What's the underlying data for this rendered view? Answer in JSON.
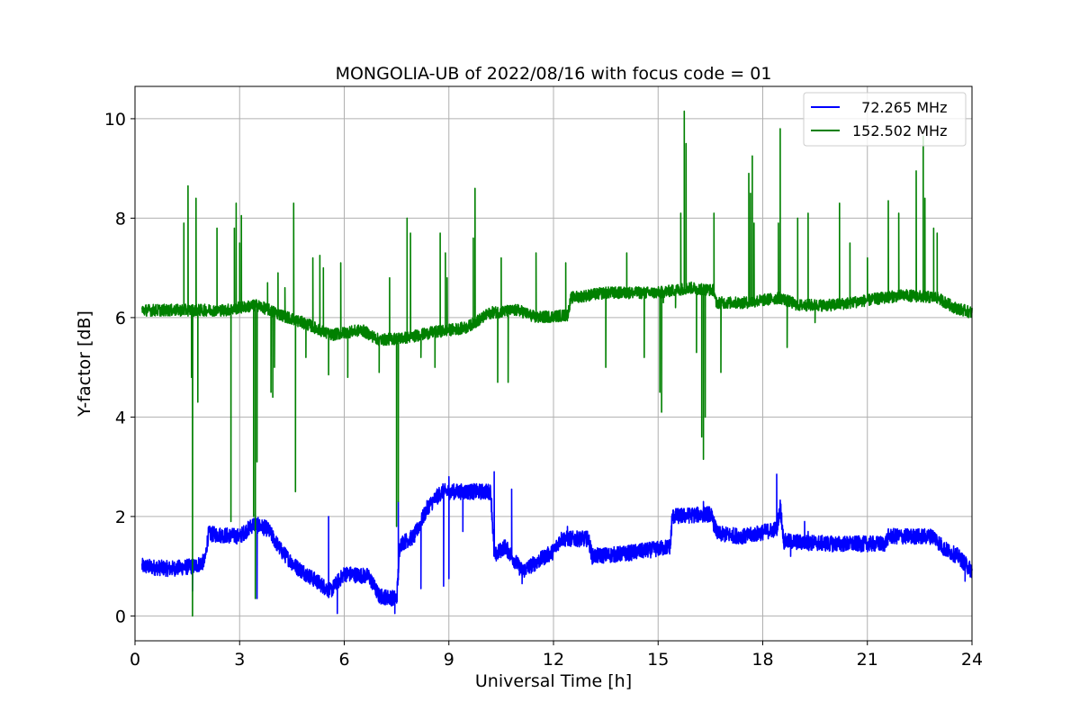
{
  "chart_data": {
    "type": "line",
    "title": "MONGOLIA-UB of 2022/08/16 with focus code = 01",
    "xlabel": "Universal Time [h]",
    "ylabel": "Y-factor [dB]",
    "xlim": [
      0,
      24
    ],
    "ylim": [
      -0.5,
      10.65
    ],
    "xticks": [
      0,
      3,
      6,
      9,
      12,
      15,
      18,
      21,
      24
    ],
    "xtick_labels": [
      "0",
      "3",
      "6",
      "9",
      "12",
      "15",
      "18",
      "21",
      "24"
    ],
    "yticks": [
      0,
      2,
      4,
      6,
      8,
      10
    ],
    "ytick_labels": [
      "0",
      "2",
      "4",
      "6",
      "8",
      "10"
    ],
    "grid": true,
    "legend_position": "top-right",
    "series": [
      {
        "name": "  72.265 MHz",
        "color": "#0000ff",
        "base": [
          [
            0.2,
            1.0
          ],
          [
            1.0,
            0.95
          ],
          [
            1.7,
            1.0
          ],
          [
            2.0,
            1.1
          ],
          [
            2.1,
            1.65
          ],
          [
            3.0,
            1.6
          ],
          [
            3.4,
            1.85
          ],
          [
            3.8,
            1.75
          ],
          [
            4.2,
            1.3
          ],
          [
            4.6,
            1.0
          ],
          [
            5.2,
            0.7
          ],
          [
            5.6,
            0.5
          ],
          [
            6.0,
            0.85
          ],
          [
            6.7,
            0.8
          ],
          [
            7.0,
            0.4
          ],
          [
            7.5,
            0.35
          ],
          [
            7.6,
            1.45
          ],
          [
            8.0,
            1.6
          ],
          [
            8.4,
            2.2
          ],
          [
            8.8,
            2.5
          ],
          [
            9.3,
            2.5
          ],
          [
            10.2,
            2.5
          ],
          [
            10.3,
            1.2
          ],
          [
            10.6,
            1.4
          ],
          [
            11.1,
            0.9
          ],
          [
            12.0,
            1.3
          ],
          [
            12.2,
            1.55
          ],
          [
            13.0,
            1.55
          ],
          [
            13.1,
            1.2
          ],
          [
            14.0,
            1.25
          ],
          [
            15.0,
            1.35
          ],
          [
            15.35,
            1.4
          ],
          [
            15.4,
            2.0
          ],
          [
            16.5,
            2.05
          ],
          [
            16.7,
            1.65
          ],
          [
            17.5,
            1.6
          ],
          [
            18.4,
            1.75
          ],
          [
            18.5,
            2.2
          ],
          [
            18.6,
            1.5
          ],
          [
            20.0,
            1.45
          ],
          [
            21.0,
            1.45
          ],
          [
            21.5,
            1.45
          ],
          [
            21.6,
            1.6
          ],
          [
            22.0,
            1.6
          ],
          [
            22.9,
            1.6
          ],
          [
            23.2,
            1.35
          ],
          [
            23.6,
            1.2
          ],
          [
            24.0,
            0.9
          ]
        ],
        "spikes": [
          [
            1.65,
            0.5
          ],
          [
            3.5,
            0.35
          ],
          [
            3.45,
            2.05
          ],
          [
            5.55,
            2.0
          ],
          [
            5.8,
            0.05
          ],
          [
            7.45,
            0.05
          ],
          [
            7.55,
            2.3
          ],
          [
            8.2,
            0.55
          ],
          [
            8.85,
            0.6
          ],
          [
            9.0,
            0.75
          ],
          [
            9.0,
            2.8
          ],
          [
            9.4,
            1.7
          ],
          [
            10.3,
            2.9
          ],
          [
            10.8,
            2.55
          ],
          [
            11.1,
            0.65
          ],
          [
            12.4,
            1.8
          ],
          [
            16.3,
            2.3
          ],
          [
            18.4,
            2.85
          ],
          [
            18.8,
            1.2
          ],
          [
            19.2,
            1.9
          ],
          [
            19.3,
            1.7
          ],
          [
            23.8,
            0.7
          ]
        ]
      },
      {
        "name": "152.502 MHz",
        "color": "#008000",
        "base": [
          [
            0.2,
            6.15
          ],
          [
            1.0,
            6.15
          ],
          [
            2.0,
            6.15
          ],
          [
            2.6,
            6.15
          ],
          [
            3.0,
            6.2
          ],
          [
            3.5,
            6.25
          ],
          [
            4.2,
            6.05
          ],
          [
            5.0,
            5.85
          ],
          [
            5.6,
            5.65
          ],
          [
            6.5,
            5.75
          ],
          [
            7.0,
            5.55
          ],
          [
            7.8,
            5.6
          ],
          [
            8.5,
            5.7
          ],
          [
            9.5,
            5.8
          ],
          [
            10.2,
            6.1
          ],
          [
            11.0,
            6.15
          ],
          [
            11.5,
            6.0
          ],
          [
            12.4,
            6.05
          ],
          [
            12.5,
            6.4
          ],
          [
            13.5,
            6.5
          ],
          [
            15.0,
            6.5
          ],
          [
            15.9,
            6.6
          ],
          [
            16.6,
            6.55
          ],
          [
            16.65,
            6.3
          ],
          [
            17.5,
            6.3
          ],
          [
            18.5,
            6.4
          ],
          [
            19.0,
            6.25
          ],
          [
            20.0,
            6.25
          ],
          [
            21.0,
            6.35
          ],
          [
            22.0,
            6.45
          ],
          [
            23.0,
            6.4
          ],
          [
            23.5,
            6.2
          ],
          [
            24.0,
            6.1
          ]
        ],
        "spikes": [
          [
            1.4,
            7.9
          ],
          [
            1.52,
            8.65
          ],
          [
            1.62,
            4.8
          ],
          [
            1.65,
            0.0
          ],
          [
            1.75,
            8.4
          ],
          [
            1.8,
            4.3
          ],
          [
            2.35,
            7.8
          ],
          [
            2.75,
            1.9
          ],
          [
            2.85,
            7.8
          ],
          [
            2.9,
            8.3
          ],
          [
            3.0,
            7.5
          ],
          [
            3.05,
            8.05
          ],
          [
            3.4,
            2.0
          ],
          [
            3.45,
            0.35
          ],
          [
            3.5,
            3.1
          ],
          [
            3.8,
            6.7
          ],
          [
            3.9,
            4.5
          ],
          [
            3.95,
            4.4
          ],
          [
            4.0,
            5.0
          ],
          [
            4.1,
            6.9
          ],
          [
            4.3,
            6.6
          ],
          [
            4.55,
            8.3
          ],
          [
            4.6,
            2.5
          ],
          [
            4.9,
            5.2
          ],
          [
            5.1,
            7.2
          ],
          [
            5.3,
            7.25
          ],
          [
            5.4,
            7.0
          ],
          [
            5.55,
            4.85
          ],
          [
            5.9,
            7.1
          ],
          [
            6.1,
            4.8
          ],
          [
            7.0,
            4.9
          ],
          [
            7.3,
            6.8
          ],
          [
            7.5,
            1.8
          ],
          [
            7.55,
            2.3
          ],
          [
            7.8,
            8.0
          ],
          [
            7.9,
            7.7
          ],
          [
            8.2,
            5.2
          ],
          [
            8.6,
            5.0
          ],
          [
            8.75,
            7.7
          ],
          [
            8.9,
            7.3
          ],
          [
            8.95,
            6.8
          ],
          [
            9.7,
            7.6
          ],
          [
            9.75,
            8.6
          ],
          [
            10.4,
            4.7
          ],
          [
            10.5,
            7.2
          ],
          [
            10.7,
            4.7
          ],
          [
            11.5,
            7.3
          ],
          [
            12.35,
            7.1
          ],
          [
            13.5,
            5.0
          ],
          [
            14.1,
            7.3
          ],
          [
            14.6,
            5.2
          ],
          [
            15.05,
            4.5
          ],
          [
            15.1,
            4.1
          ],
          [
            15.15,
            6.3
          ],
          [
            15.5,
            6.2
          ],
          [
            15.65,
            8.1
          ],
          [
            15.75,
            10.15
          ],
          [
            15.8,
            9.5
          ],
          [
            16.1,
            5.3
          ],
          [
            16.25,
            3.6
          ],
          [
            16.3,
            3.15
          ],
          [
            16.35,
            4.0
          ],
          [
            16.6,
            8.1
          ],
          [
            16.8,
            4.9
          ],
          [
            17.6,
            8.9
          ],
          [
            17.65,
            8.5
          ],
          [
            17.7,
            9.25
          ],
          [
            17.75,
            7.9
          ],
          [
            18.45,
            7.9
          ],
          [
            18.5,
            9.8
          ],
          [
            18.7,
            5.4
          ],
          [
            19.0,
            8.0
          ],
          [
            19.3,
            8.1
          ],
          [
            19.5,
            5.9
          ],
          [
            20.2,
            8.3
          ],
          [
            20.5,
            7.5
          ],
          [
            21.0,
            7.2
          ],
          [
            21.6,
            8.35
          ],
          [
            21.9,
            8.1
          ],
          [
            22.4,
            8.95
          ],
          [
            22.6,
            9.65
          ],
          [
            22.65,
            8.4
          ],
          [
            22.9,
            7.8
          ],
          [
            23.0,
            7.7
          ]
        ]
      }
    ]
  }
}
